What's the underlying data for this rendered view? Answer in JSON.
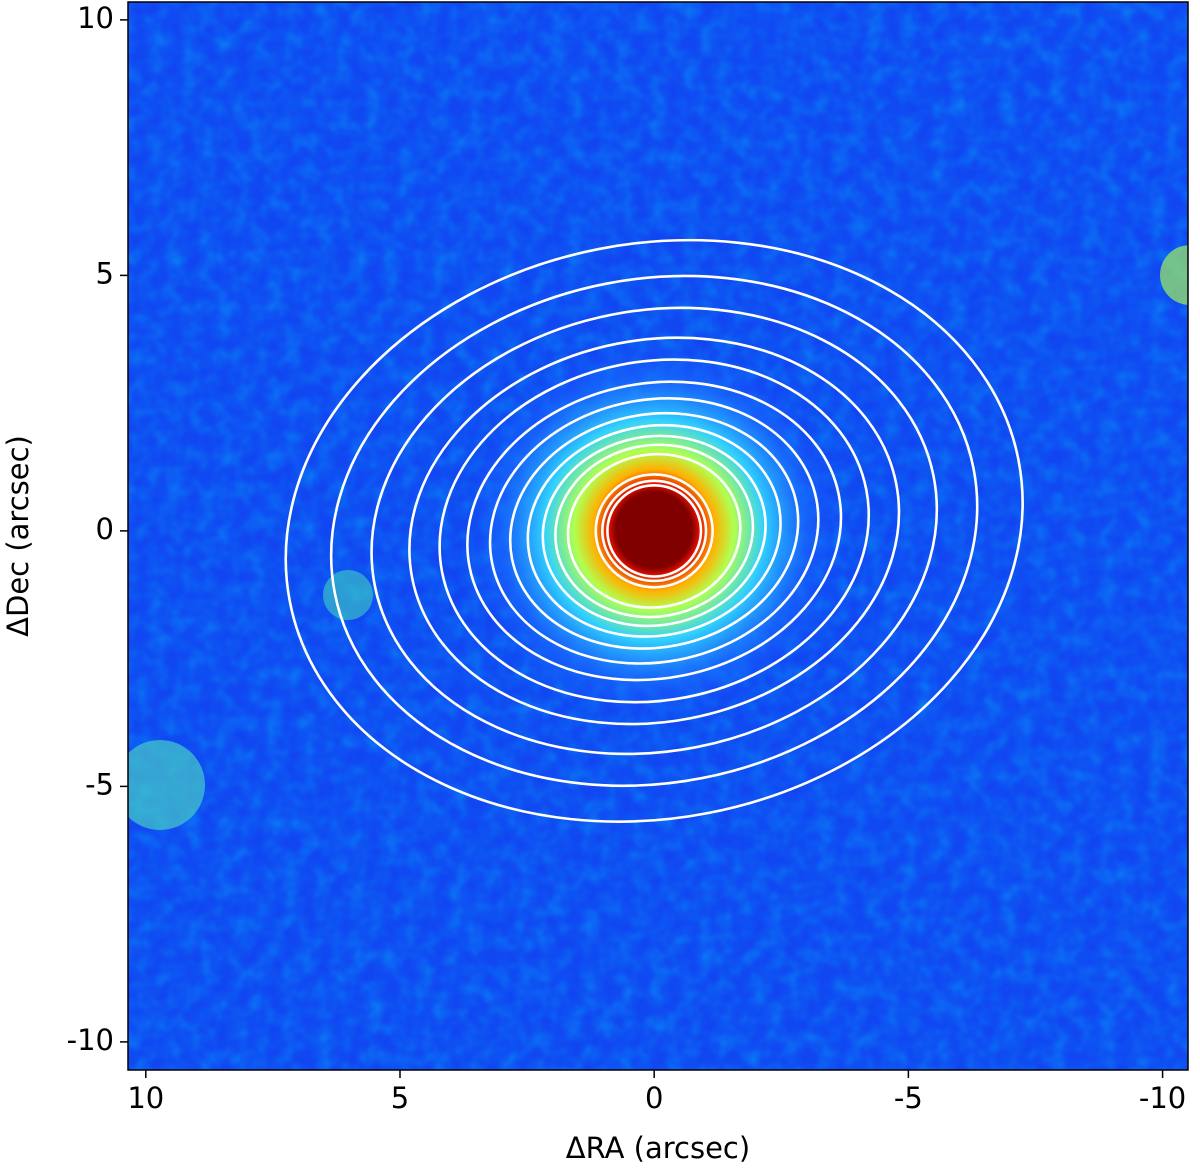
{
  "chart_data": {
    "type": "image",
    "xlabel": "ΔRA (arcsec)",
    "ylabel": "ΔDec (arcsec)",
    "xlim": [
      10.35,
      -10.5
    ],
    "ylim": [
      -10.55,
      10.35
    ],
    "xticks": [
      10,
      5,
      0,
      -5,
      -10
    ],
    "yticks": [
      10,
      5,
      0,
      -5,
      -10
    ],
    "center": [
      0,
      0
    ],
    "ellipse_color": "#ffffff",
    "ellipses": [
      {
        "sma": 7.3,
        "ratio": 0.77,
        "angle": 11
      },
      {
        "sma": 6.4,
        "ratio": 0.77,
        "angle": 11
      },
      {
        "sma": 5.6,
        "ratio": 0.77,
        "angle": 11
      },
      {
        "sma": 4.85,
        "ratio": 0.77,
        "angle": 11
      },
      {
        "sma": 4.25,
        "ratio": 0.78,
        "angle": 11
      },
      {
        "sma": 3.7,
        "ratio": 0.78,
        "angle": 11
      },
      {
        "sma": 3.25,
        "ratio": 0.79,
        "angle": 11
      },
      {
        "sma": 2.85,
        "ratio": 0.8,
        "angle": 11
      },
      {
        "sma": 2.5,
        "ratio": 0.82,
        "angle": 11
      },
      {
        "sma": 2.2,
        "ratio": 0.84,
        "angle": 10
      },
      {
        "sma": 1.95,
        "ratio": 0.86,
        "angle": 10
      },
      {
        "sma": 1.7,
        "ratio": 0.88,
        "angle": 10
      },
      {
        "sma": 1.15,
        "ratio": 0.96,
        "angle": 0
      },
      {
        "sma": 1.02,
        "ratio": 0.96,
        "angle": 0
      },
      {
        "sma": 0.92,
        "ratio": 0.97,
        "angle": 0
      }
    ]
  }
}
